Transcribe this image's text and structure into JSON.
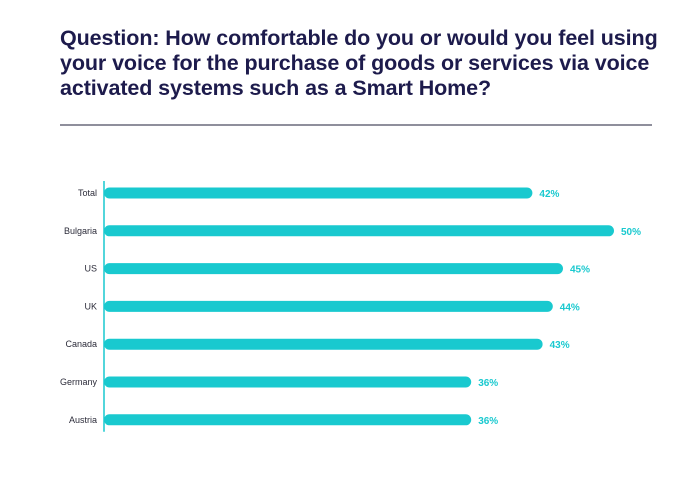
{
  "title": "Question: How comfortable do you or would you feel using your voice for the purchase of goods or services via voice activated systems such as a Smart Home?",
  "colors": {
    "bar": "#19c9cf",
    "value_label": "#19c9cf",
    "title": "#1d1b4c",
    "axis": "#19c9cf"
  },
  "chart_data": {
    "type": "bar",
    "orientation": "horizontal",
    "categories": [
      "Total",
      "Bulgaria",
      "US",
      "UK",
      "Canada",
      "Germany",
      "Austria"
    ],
    "values": [
      42,
      50,
      45,
      44,
      43,
      36,
      36
    ],
    "value_labels": [
      "42%",
      "50%",
      "45%",
      "44%",
      "43%",
      "36%",
      "36%"
    ],
    "xlim": [
      0,
      50
    ],
    "grid": false
  }
}
